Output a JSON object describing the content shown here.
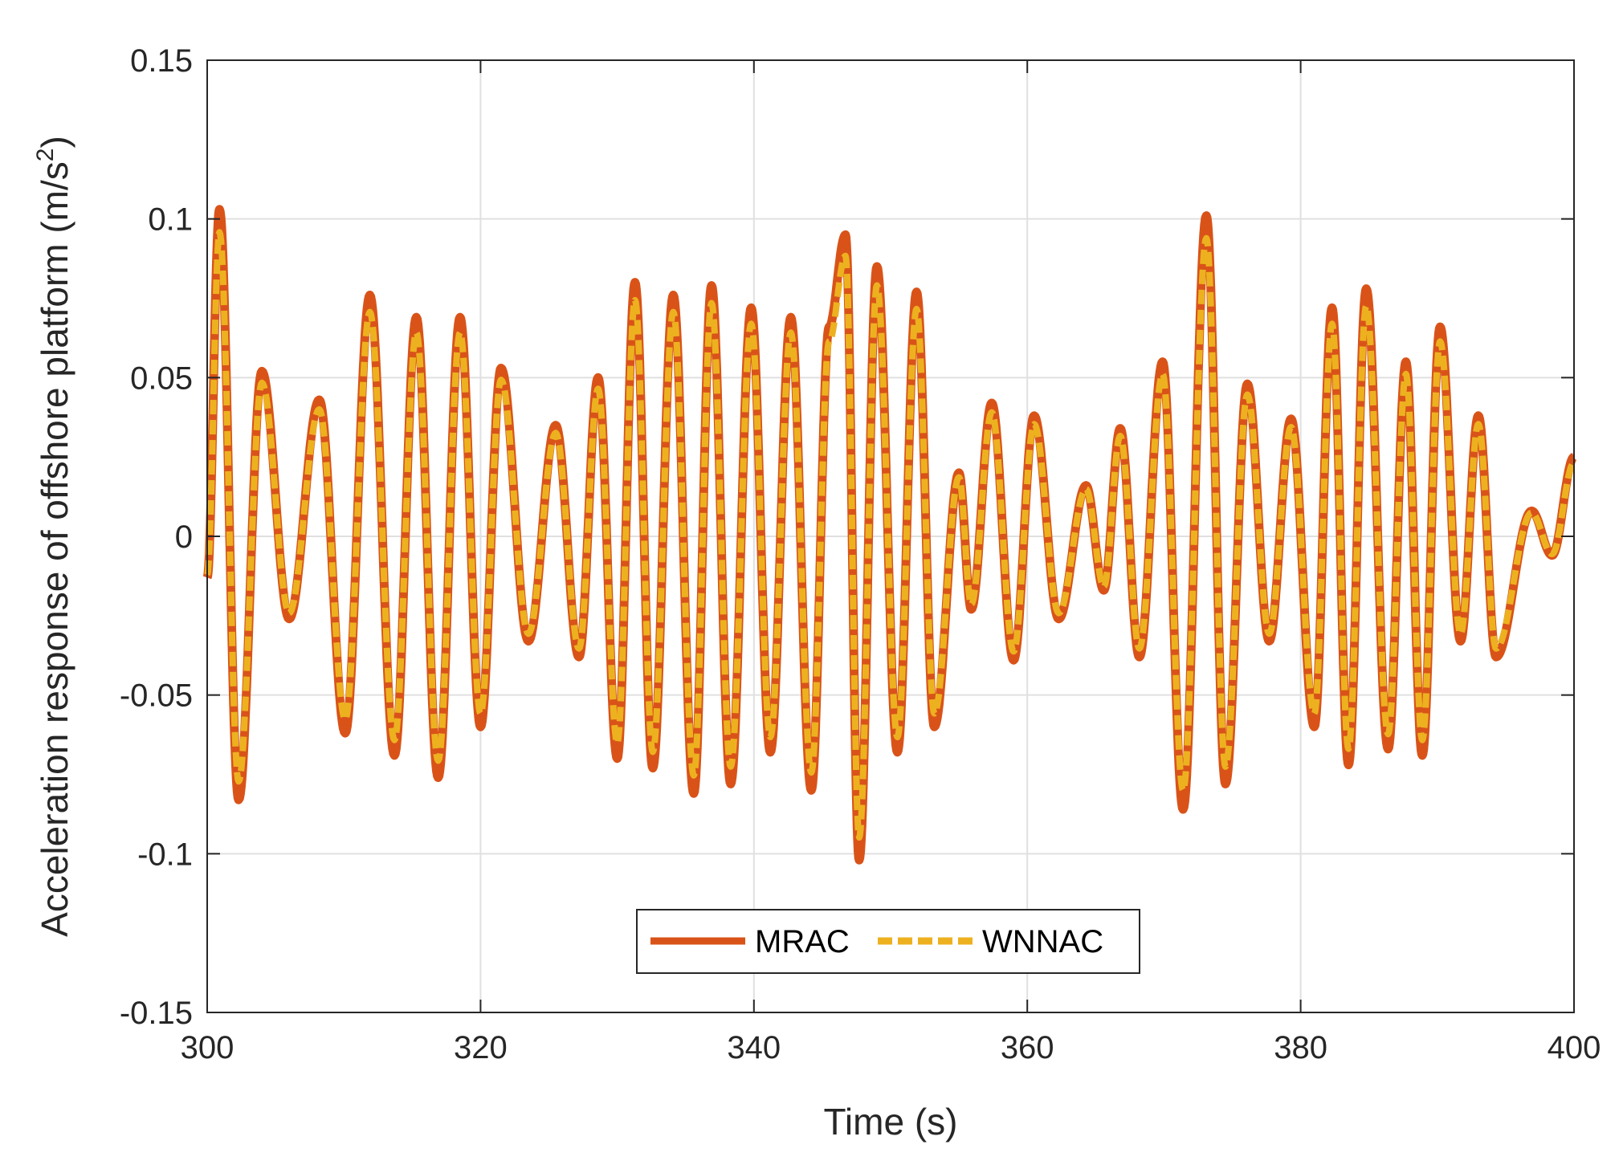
{
  "chart_data": {
    "type": "line",
    "xlabel": "Time (s)",
    "ylabel": "Acceleration response of offshore platform (m/s",
    "ylabel_superscript": "2",
    "ylabel_close": ")",
    "xlim": [
      300,
      400
    ],
    "ylim": [
      -0.15,
      0.15
    ],
    "xticks": [
      300,
      320,
      340,
      360,
      380,
      400
    ],
    "xtick_labels": [
      "300",
      "320",
      "340",
      "360",
      "380",
      "400"
    ],
    "yticks": [
      -0.15,
      -0.1,
      -0.05,
      0,
      0.05,
      0.1,
      0.15
    ],
    "ytick_labels": [
      "-0.15",
      "-0.1",
      "-0.05",
      "0",
      "0.05",
      "0.1",
      "0.15"
    ],
    "grid": true,
    "legend_position": "bottom-center",
    "series": [
      {
        "name": "MRAC",
        "color": "#D95319",
        "style": "solid",
        "scale": 1.0
      },
      {
        "name": "WNNAC",
        "color": "#EDB120",
        "style": "dashed",
        "scale": 0.93
      }
    ],
    "extrema": [
      [
        300.0,
        -0.013
      ],
      [
        300.9,
        0.103
      ],
      [
        302.3,
        -0.083
      ],
      [
        304.0,
        0.052
      ],
      [
        306.0,
        -0.026
      ],
      [
        308.2,
        0.043
      ],
      [
        310.1,
        -0.062
      ],
      [
        311.9,
        0.076
      ],
      [
        313.7,
        -0.069
      ],
      [
        315.3,
        0.069
      ],
      [
        316.9,
        -0.076
      ],
      [
        318.5,
        0.069
      ],
      [
        320.0,
        -0.06
      ],
      [
        321.5,
        0.053
      ],
      [
        323.5,
        -0.033
      ],
      [
        325.5,
        0.035
      ],
      [
        327.2,
        -0.038
      ],
      [
        328.6,
        0.05
      ],
      [
        330.0,
        -0.07
      ],
      [
        331.3,
        0.08
      ],
      [
        332.6,
        -0.073
      ],
      [
        334.1,
        0.076
      ],
      [
        335.6,
        -0.081
      ],
      [
        336.9,
        0.079
      ],
      [
        338.3,
        -0.078
      ],
      [
        339.8,
        0.072
      ],
      [
        341.2,
        -0.068
      ],
      [
        342.7,
        0.069
      ],
      [
        344.2,
        -0.08
      ],
      [
        345.5,
        0.066
      ],
      [
        346.7,
        0.095
      ],
      [
        347.7,
        -0.102
      ],
      [
        349.0,
        0.085
      ],
      [
        350.5,
        -0.068
      ],
      [
        351.9,
        0.077
      ],
      [
        353.2,
        -0.06
      ],
      [
        355.0,
        0.02
      ],
      [
        355.9,
        -0.023
      ],
      [
        357.4,
        0.042
      ],
      [
        359.0,
        -0.039
      ],
      [
        360.5,
        0.038
      ],
      [
        362.3,
        -0.026
      ],
      [
        364.3,
        0.016
      ],
      [
        365.6,
        -0.017
      ],
      [
        366.8,
        0.034
      ],
      [
        368.2,
        -0.038
      ],
      [
        369.9,
        0.055
      ],
      [
        371.4,
        -0.086
      ],
      [
        373.1,
        0.101
      ],
      [
        374.5,
        -0.078
      ],
      [
        376.1,
        0.048
      ],
      [
        377.7,
        -0.033
      ],
      [
        379.3,
        0.037
      ],
      [
        381.0,
        -0.06
      ],
      [
        382.3,
        0.072
      ],
      [
        383.5,
        -0.072
      ],
      [
        384.8,
        0.078
      ],
      [
        386.4,
        -0.067
      ],
      [
        387.7,
        0.055
      ],
      [
        388.9,
        -0.069
      ],
      [
        390.2,
        0.066
      ],
      [
        391.7,
        -0.033
      ],
      [
        393.0,
        0.038
      ],
      [
        394.3,
        -0.038
      ],
      [
        396.9,
        0.008
      ],
      [
        398.4,
        -0.006
      ],
      [
        400.0,
        0.025
      ]
    ]
  },
  "legend": {
    "items": [
      "MRAC",
      "WNNAC"
    ]
  }
}
